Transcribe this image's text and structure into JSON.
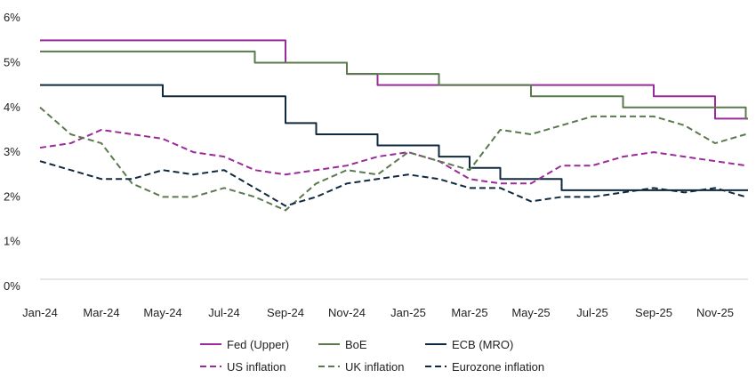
{
  "chart_data": {
    "type": "line",
    "title": "",
    "xlabel": "",
    "ylabel": "",
    "ylim": [
      0,
      6
    ],
    "y_ticks": [
      "0%",
      "1%",
      "2%",
      "3%",
      "4%",
      "5%",
      "6%"
    ],
    "x_ticks": [
      "Jan-24",
      "Mar-24",
      "May-24",
      "Jul-24",
      "Sep-24",
      "Nov-24",
      "Jan-25",
      "Mar-25",
      "May-25",
      "Jul-25",
      "Sep-25",
      "Nov-25"
    ],
    "months": [
      "Jan-24",
      "Feb-24",
      "Mar-24",
      "Apr-24",
      "May-24",
      "Jun-24",
      "Jul-24",
      "Aug-24",
      "Sep-24",
      "Oct-24",
      "Nov-24",
      "Dec-24",
      "Jan-25",
      "Feb-25",
      "Mar-25",
      "Apr-25",
      "May-25",
      "Jun-25",
      "Jul-25",
      "Aug-25",
      "Sep-25",
      "Oct-25",
      "Nov-25",
      "Dec-25"
    ],
    "grid": false,
    "legend_position": "bottom",
    "series": [
      {
        "name": "Fed (Upper)",
        "style": "step",
        "dash": false,
        "color": "#9b2a9b",
        "values": [
          5.5,
          5.5,
          5.5,
          5.5,
          5.5,
          5.5,
          5.5,
          5.5,
          5.0,
          5.0,
          4.75,
          4.5,
          4.5,
          4.5,
          4.5,
          4.5,
          4.5,
          4.5,
          4.5,
          4.5,
          4.25,
          4.25,
          3.75,
          3.75
        ]
      },
      {
        "name": "BoE",
        "style": "step",
        "dash": false,
        "color": "#5a7a4e",
        "values": [
          5.25,
          5.25,
          5.25,
          5.25,
          5.25,
          5.25,
          5.25,
          5.0,
          5.0,
          5.0,
          4.75,
          4.75,
          4.75,
          4.5,
          4.5,
          4.5,
          4.25,
          4.25,
          4.25,
          4.0,
          4.0,
          4.0,
          4.0,
          3.75
        ]
      },
      {
        "name": "ECB (MRO)",
        "style": "step",
        "dash": false,
        "color": "#0f2a40",
        "values": [
          4.5,
          4.5,
          4.5,
          4.5,
          4.25,
          4.25,
          4.25,
          4.25,
          3.65,
          3.4,
          3.4,
          3.15,
          3.15,
          2.9,
          2.65,
          2.4,
          2.4,
          2.15,
          2.15,
          2.15,
          2.15,
          2.15,
          2.15,
          2.15
        ]
      },
      {
        "name": "US inflation",
        "style": "line",
        "dash": true,
        "color": "#9b2a9b",
        "values": [
          3.1,
          3.2,
          3.5,
          3.4,
          3.3,
          3.0,
          2.9,
          2.6,
          2.5,
          2.6,
          2.7,
          2.9,
          3.0,
          2.8,
          2.4,
          2.3,
          2.3,
          2.7,
          2.7,
          2.9,
          3.0,
          2.9,
          2.8,
          2.7
        ]
      },
      {
        "name": "UK inflation",
        "style": "line",
        "dash": true,
        "color": "#5a7a4e",
        "values": [
          4.0,
          3.4,
          3.2,
          2.3,
          2.0,
          2.0,
          2.2,
          2.0,
          1.7,
          2.3,
          2.6,
          2.5,
          3.0,
          2.8,
          2.6,
          3.5,
          3.4,
          3.6,
          3.8,
          3.8,
          3.8,
          3.6,
          3.2,
          3.4
        ]
      },
      {
        "name": "Eurozone inflation",
        "style": "line",
        "dash": true,
        "color": "#0f2a40",
        "values": [
          2.8,
          2.6,
          2.4,
          2.4,
          2.6,
          2.5,
          2.6,
          2.2,
          1.8,
          2.0,
          2.3,
          2.4,
          2.5,
          2.4,
          2.2,
          2.2,
          1.9,
          2.0,
          2.0,
          2.1,
          2.2,
          2.1,
          2.2,
          2.0
        ]
      }
    ]
  }
}
